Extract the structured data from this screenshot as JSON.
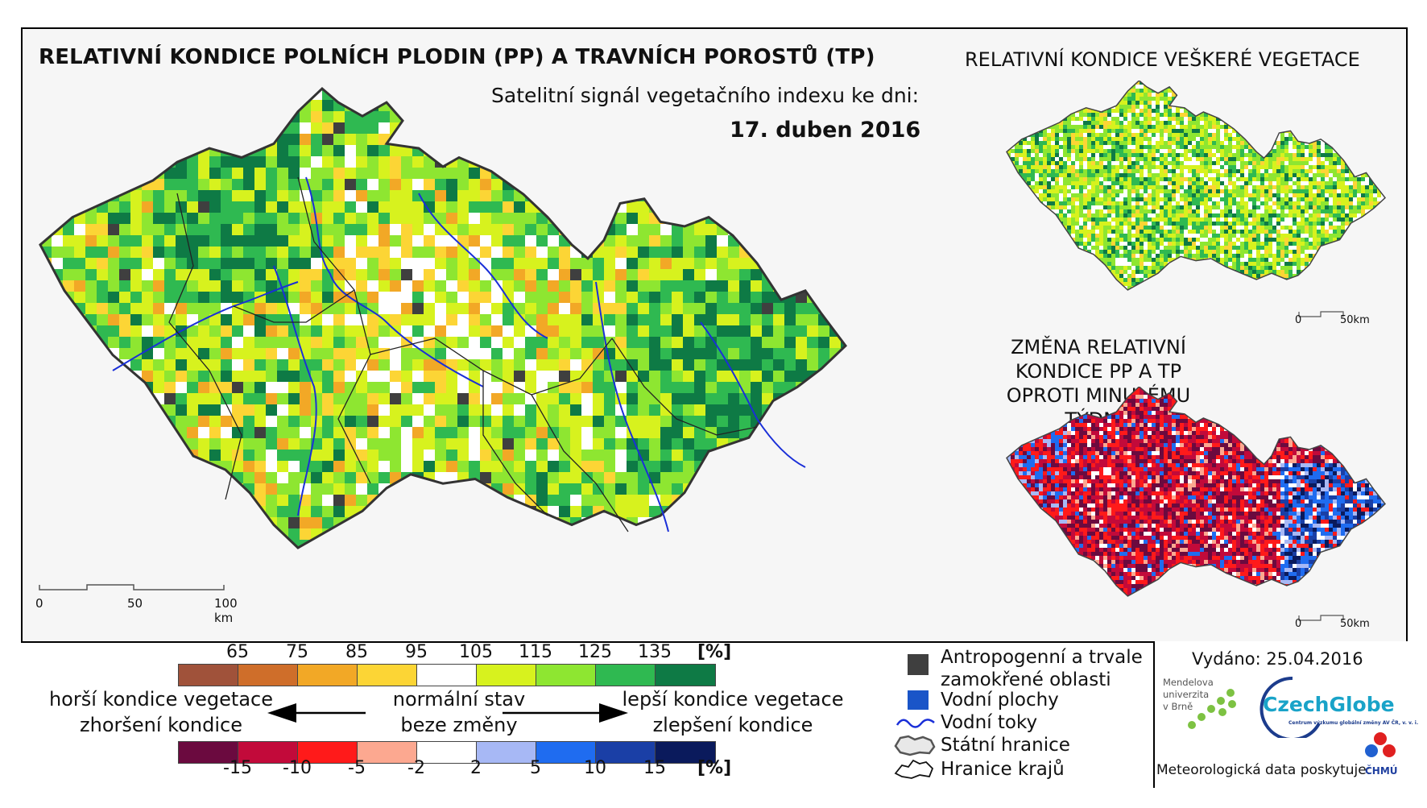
{
  "titles": {
    "main": "RELATIVNÍ KONDICE POLNÍCH PLODIN (PP) A TRAVNÍCH POROSTŮ (TP)",
    "subtitle": "Satelitní signál vegetačního indexu ke dni:",
    "date": "17. duben 2016",
    "vegetation": "RELATIVNÍ KONDICE VEŠKERÉ VEGETACE",
    "change_line1": "ZMĚNA RELATIVNÍ KONDICE PP A TP",
    "change_line2": "OPROTI MINULÉMU TÝDNU"
  },
  "scales": {
    "main": {
      "l0": "0",
      "l1": "50",
      "l2": "100 km"
    },
    "small1": {
      "l0": "0",
      "l1": "50km"
    },
    "small2": {
      "l0": "0",
      "l1": "50km"
    }
  },
  "legend": {
    "top_labels": [
      "65",
      "75",
      "85",
      "95",
      "105",
      "115",
      "125",
      "135"
    ],
    "top_unit": "[%]",
    "top_colors": [
      "#a0523a",
      "#cf6e2a",
      "#f2a826",
      "#fcd535",
      "#ffffff",
      "#d7f21e",
      "#8ee631",
      "#2fb951",
      "#0e7a45"
    ],
    "bottom_labels": [
      "-15",
      "-10",
      "-5",
      "-2",
      "2",
      "5",
      "10",
      "15"
    ],
    "bottom_unit": "[%]",
    "bottom_colors": [
      "#6b0a3f",
      "#c20a3a",
      "#ff1a1a",
      "#fca890",
      "#ffffff",
      "#a7b8f5",
      "#1f6cf0",
      "#1a3fa6",
      "#0a1a5c"
    ],
    "worse_condition": "horší kondice vegetace",
    "worse_change": "zhoršení kondice",
    "normal": "normální stav",
    "no_change": "beze změny",
    "better_condition": "lepší kondice vegetace",
    "better_change": "zlepšení kondice"
  },
  "map_legend": {
    "anthropogenic_line1": "Antropogenní a trvale",
    "anthropogenic_line2": "zamokřené oblasti",
    "water_bodies": "Vodní plochy",
    "rivers": "Vodní toky",
    "state_border": "Státní hranice",
    "region_border": "Hranice krajů",
    "color_anthropogenic": "#3f3f3f",
    "color_water": "#1a55c8"
  },
  "issued": {
    "text": "Vydáno: 25.04.2016",
    "mendel_line1": "Mendelova",
    "mendel_line2": "univerzita",
    "mendel_line3": "v Brně",
    "czechglobe": "CzechGlobe",
    "czechglobe_sub": "Centrum výzkumu globální změny AV ČR, v. v. i.",
    "meteo": "Meteorologická data poskytuje:",
    "chmu": "ČHMÚ"
  }
}
